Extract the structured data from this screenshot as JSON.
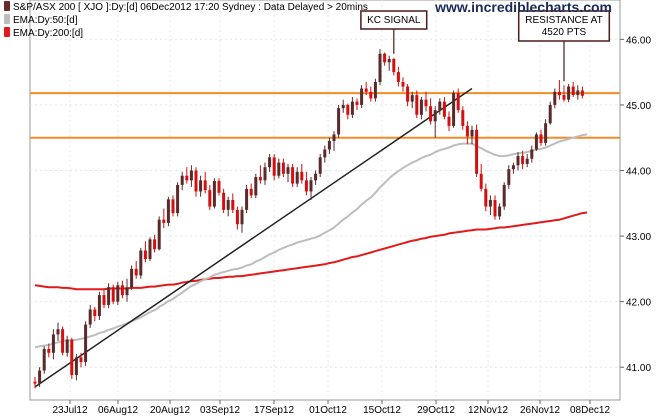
{
  "chart_data": {
    "type": "candlestick",
    "legend": [
      {
        "label": "S&P/ASX 200 [ XJO ]:Dy:[d]  06Dec2012 17:20 Sydney : Data Delayed > 20mins",
        "color": "#6b2a2a"
      },
      {
        "label": "EMA:Dy:50:[d]",
        "color": "#bdbdbd"
      },
      {
        "label": "EMA:Dy:200:[d]",
        "color": "#e31a1c"
      }
    ],
    "brand": "www.incrediblecharts.com",
    "ylim": [
      4050,
      4660
    ],
    "y_ticks": [
      "41.00",
      "42.00",
      "43.00",
      "44.00",
      "45.00",
      "46.00"
    ],
    "x_ticks": [
      "23Jul12",
      "06Aug12",
      "20Aug12",
      "03Sep12",
      "17Sep12",
      "01Oct12",
      "15Oct12",
      "29Oct12",
      "12Nov12",
      "26Nov12",
      "08Dec12"
    ],
    "horizontal_lines": [
      {
        "value": 4518,
        "color": "#f28c28"
      },
      {
        "value": 4450,
        "color": "#f28c28"
      }
    ],
    "annotations": [
      {
        "lines": [
          "KC SIGNAL"
        ],
        "anchor_index": 78
      },
      {
        "lines": [
          "RESISTANCE AT",
          "4520 PTS"
        ],
        "anchor_index": 115
      }
    ],
    "trendline": {
      "start_index": 0,
      "start_value": 4070,
      "end_index": 95,
      "end_value": 4525
    },
    "candles": [
      [
        4078,
        4085,
        4068,
        4075
      ],
      [
        4075,
        4100,
        4070,
        4095
      ],
      [
        4095,
        4132,
        4090,
        4128
      ],
      [
        4128,
        4136,
        4115,
        4122
      ],
      [
        4122,
        4158,
        4112,
        4150
      ],
      [
        4150,
        4168,
        4140,
        4158
      ],
      [
        4158,
        4162,
        4118,
        4122
      ],
      [
        4122,
        4148,
        4116,
        4142
      ],
      [
        4142,
        4145,
        4082,
        4088
      ],
      [
        4088,
        4120,
        4080,
        4115
      ],
      [
        4115,
        4122,
        4100,
        4108
      ],
      [
        4108,
        4170,
        4102,
        4165
      ],
      [
        4165,
        4195,
        4160,
        4188
      ],
      [
        4188,
        4192,
        4170,
        4178
      ],
      [
        4178,
        4215,
        4172,
        4210
      ],
      [
        4210,
        4218,
        4190,
        4195
      ],
      [
        4195,
        4228,
        4190,
        4222
      ],
      [
        4222,
        4226,
        4196,
        4200
      ],
      [
        4200,
        4230,
        4195,
        4225
      ],
      [
        4225,
        4232,
        4205,
        4210
      ],
      [
        4210,
        4235,
        4200,
        4222
      ],
      [
        4222,
        4255,
        4218,
        4250
      ],
      [
        4250,
        4262,
        4235,
        4240
      ],
      [
        4240,
        4282,
        4235,
        4278
      ],
      [
        4278,
        4292,
        4260,
        4265
      ],
      [
        4265,
        4298,
        4262,
        4295
      ],
      [
        4295,
        4302,
        4275,
        4280
      ],
      [
        4280,
        4330,
        4278,
        4325
      ],
      [
        4325,
        4342,
        4312,
        4320
      ],
      [
        4320,
        4360,
        4315,
        4356
      ],
      [
        4356,
        4362,
        4330,
        4335
      ],
      [
        4335,
        4382,
        4330,
        4378
      ],
      [
        4378,
        4398,
        4370,
        4392
      ],
      [
        4392,
        4405,
        4380,
        4385
      ],
      [
        4385,
        4408,
        4375,
        4400
      ],
      [
        4400,
        4405,
        4360,
        4368
      ],
      [
        4368,
        4392,
        4360,
        4385
      ],
      [
        4385,
        4398,
        4365,
        4370
      ],
      [
        4370,
        4378,
        4340,
        4345
      ],
      [
        4345,
        4388,
        4342,
        4384
      ],
      [
        4384,
        4388,
        4362,
        4366
      ],
      [
        4366,
        4372,
        4335,
        4340
      ],
      [
        4340,
        4360,
        4330,
        4355
      ],
      [
        4355,
        4365,
        4335,
        4340
      ],
      [
        4340,
        4345,
        4310,
        4318
      ],
      [
        4318,
        4345,
        4305,
        4340
      ],
      [
        4340,
        4378,
        4335,
        4372
      ],
      [
        4372,
        4380,
        4358,
        4362
      ],
      [
        4362,
        4395,
        4358,
        4390
      ],
      [
        4390,
        4408,
        4380,
        4385
      ],
      [
        4385,
        4412,
        4378,
        4405
      ],
      [
        4405,
        4425,
        4398,
        4420
      ],
      [
        4420,
        4425,
        4385,
        4392
      ],
      [
        4392,
        4418,
        4388,
        4412
      ],
      [
        4412,
        4418,
        4390,
        4395
      ],
      [
        4395,
        4410,
        4382,
        4405
      ],
      [
        4405,
        4410,
        4375,
        4380
      ],
      [
        4380,
        4405,
        4375,
        4398
      ],
      [
        4398,
        4410,
        4380,
        4385
      ],
      [
        4385,
        4398,
        4362,
        4368
      ],
      [
        4368,
        4390,
        4355,
        4385
      ],
      [
        4385,
        4400,
        4378,
        4395
      ],
      [
        4395,
        4425,
        4390,
        4420
      ],
      [
        4420,
        4438,
        4412,
        4432
      ],
      [
        4432,
        4450,
        4425,
        4445
      ],
      [
        4445,
        4460,
        4430,
        4455
      ],
      [
        4455,
        4500,
        4450,
        4495
      ],
      [
        4495,
        4508,
        4488,
        4500
      ],
      [
        4500,
        4502,
        4478,
        4485
      ],
      [
        4485,
        4512,
        4480,
        4505
      ],
      [
        4505,
        4510,
        4492,
        4500
      ],
      [
        4500,
        4530,
        4495,
        4525
      ],
      [
        4525,
        4535,
        4515,
        4520
      ],
      [
        4520,
        4528,
        4505,
        4510
      ],
      [
        4510,
        4540,
        4505,
        4535
      ],
      [
        4535,
        4585,
        4530,
        4578
      ],
      [
        4578,
        4580,
        4560,
        4565
      ],
      [
        4565,
        4575,
        4552,
        4570
      ],
      [
        4570,
        4572,
        4545,
        4550
      ],
      [
        4550,
        4558,
        4528,
        4535
      ],
      [
        4535,
        4542,
        4520,
        4528
      ],
      [
        4528,
        4532,
        4498,
        4505
      ],
      [
        4505,
        4520,
        4495,
        4515
      ],
      [
        4515,
        4522,
        4480,
        4485
      ],
      [
        4485,
        4512,
        4478,
        4508
      ],
      [
        4508,
        4520,
        4490,
        4498
      ],
      [
        4498,
        4510,
        4470,
        4475
      ],
      [
        4475,
        4498,
        4450,
        4492
      ],
      [
        4492,
        4510,
        4485,
        4505
      ],
      [
        4505,
        4512,
        4478,
        4482
      ],
      [
        4482,
        4490,
        4460,
        4468
      ],
      [
        4468,
        4522,
        4465,
        4518
      ],
      [
        4518,
        4525,
        4488,
        4492
      ],
      [
        4492,
        4498,
        4462,
        4468
      ],
      [
        4468,
        4475,
        4440,
        4452
      ],
      [
        4452,
        4468,
        4440,
        4462
      ],
      [
        4462,
        4470,
        4390,
        4395
      ],
      [
        4395,
        4410,
        4368,
        4372
      ],
      [
        4372,
        4380,
        4338,
        4345
      ],
      [
        4345,
        4362,
        4332,
        4355
      ],
      [
        4355,
        4362,
        4325,
        4330
      ],
      [
        4330,
        4350,
        4325,
        4345
      ],
      [
        4345,
        4382,
        4340,
        4378
      ],
      [
        4378,
        4408,
        4372,
        4402
      ],
      [
        4402,
        4412,
        4395,
        4408
      ],
      [
        4408,
        4428,
        4400,
        4422
      ],
      [
        4422,
        4430,
        4402,
        4410
      ],
      [
        4410,
        4425,
        4405,
        4418
      ],
      [
        4418,
        4438,
        4412,
        4432
      ],
      [
        4432,
        4458,
        4430,
        4455
      ],
      [
        4455,
        4462,
        4438,
        4442
      ],
      [
        4442,
        4478,
        4438,
        4472
      ],
      [
        4472,
        4505,
        4470,
        4500
      ],
      [
        4500,
        4525,
        4495,
        4520
      ],
      [
        4520,
        4538,
        4508,
        4515
      ],
      [
        4515,
        4530,
        4505,
        4508
      ],
      [
        4508,
        4532,
        4504,
        4528
      ],
      [
        4528,
        4535,
        4512,
        4515
      ],
      [
        4515,
        4530,
        4508,
        4522
      ],
      [
        4522,
        4528,
        4510,
        4514
      ]
    ],
    "ema50": [
      4130,
      4132,
      4133,
      4134,
      4136,
      4138,
      4140,
      4141,
      4141,
      4142,
      4143,
      4145,
      4147,
      4149,
      4152,
      4154,
      4157,
      4159,
      4162,
      4164,
      4167,
      4170,
      4173,
      4176,
      4180,
      4184,
      4187,
      4192,
      4196,
      4201,
      4204,
      4209,
      4214,
      4219,
      4224,
      4227,
      4231,
      4234,
      4237,
      4241,
      4243,
      4245,
      4247,
      4249,
      4250,
      4252,
      4255,
      4257,
      4261,
      4264,
      4268,
      4272,
      4275,
      4279,
      4282,
      4285,
      4287,
      4290,
      4292,
      4294,
      4296,
      4298,
      4301,
      4305,
      4309,
      4313,
      4319,
      4325,
      4330,
      4336,
      4341,
      4348,
      4354,
      4359,
      4366,
      4374,
      4381,
      4388,
      4394,
      4399,
      4404,
      4408,
      4412,
      4415,
      4419,
      4422,
      4424,
      4428,
      4431,
      4433,
      4435,
      4438,
      4440,
      4441,
      4441,
      4441,
      4437,
      4434,
      4430,
      4427,
      4424,
      4422,
      4422,
      4423,
      4425,
      4426,
      4427,
      4428,
      4430,
      4432,
      4433,
      4435,
      4438,
      4441,
      4444,
      4446,
      4448,
      4450,
      4452,
      4454,
      4455
    ],
    "ema200": [
      4225,
      4224,
      4223,
      4222,
      4222,
      4222,
      4221,
      4221,
      4220,
      4219,
      4219,
      4219,
      4219,
      4219,
      4219,
      4219,
      4220,
      4220,
      4220,
      4220,
      4220,
      4221,
      4221,
      4221,
      4222,
      4223,
      4223,
      4224,
      4225,
      4226,
      4226,
      4227,
      4229,
      4230,
      4231,
      4232,
      4233,
      4234,
      4235,
      4236,
      4236,
      4237,
      4238,
      4238,
      4239,
      4239,
      4240,
      4241,
      4242,
      4243,
      4244,
      4245,
      4246,
      4247,
      4248,
      4249,
      4250,
      4251,
      4252,
      4253,
      4254,
      4255,
      4256,
      4257,
      4259,
      4260,
      4262,
      4264,
      4266,
      4268,
      4269,
      4271,
      4273,
      4275,
      4277,
      4279,
      4281,
      4283,
      4285,
      4287,
      4289,
      4291,
      4293,
      4294,
      4296,
      4297,
      4299,
      4300,
      4301,
      4302,
      4304,
      4305,
      4306,
      4307,
      4308,
      4309,
      4310,
      4310,
      4310,
      4311,
      4312,
      4313,
      4313,
      4314,
      4315,
      4316,
      4317,
      4318,
      4319,
      4320,
      4321,
      4322,
      4323,
      4324,
      4325,
      4327,
      4329,
      4331,
      4333,
      4335,
      4336
    ]
  }
}
